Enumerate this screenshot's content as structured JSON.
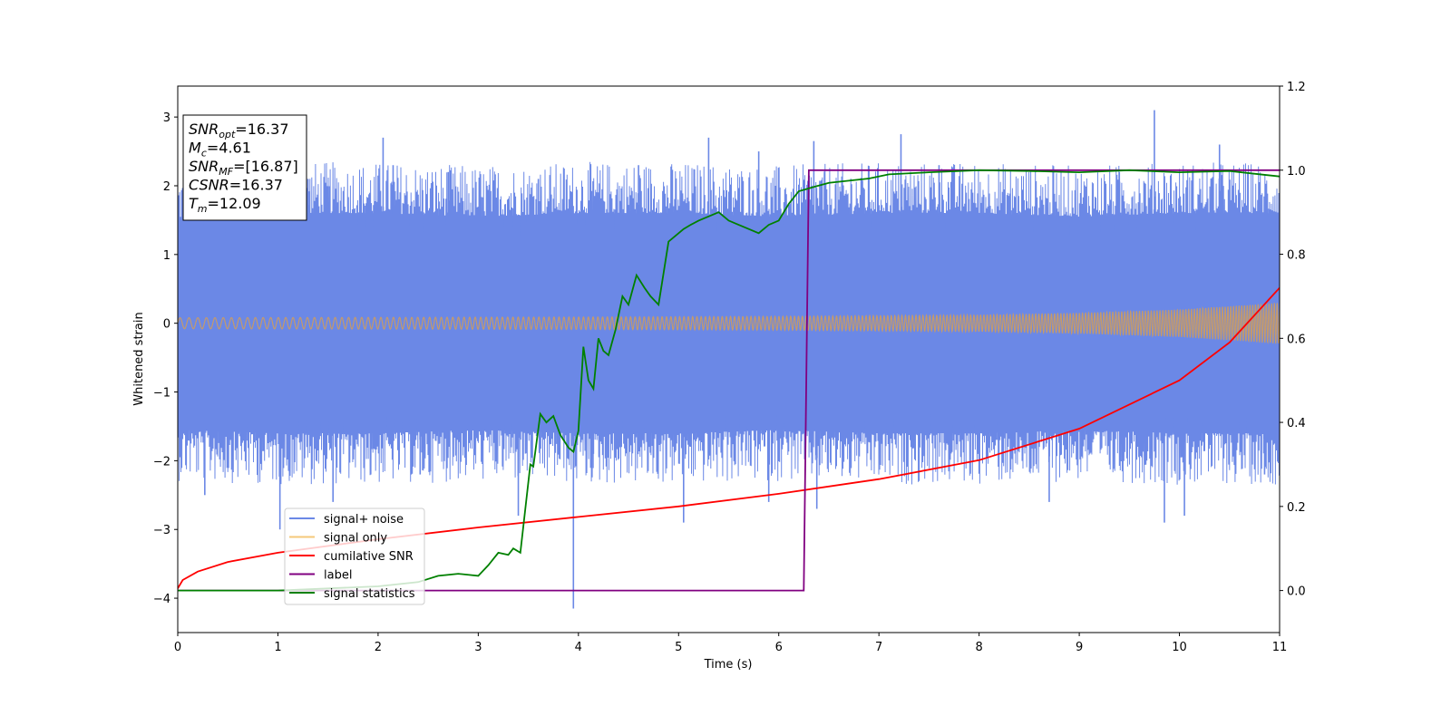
{
  "chart_data": {
    "type": "line",
    "xlabel": "Time (s)",
    "ylabel": "Whitened strain",
    "xlim": [
      0,
      11
    ],
    "ylim": [
      -4.5,
      3.45
    ],
    "y2lim": [
      -0.1,
      1.2
    ],
    "x_ticks": [
      0,
      1,
      2,
      3,
      4,
      5,
      6,
      7,
      8,
      9,
      10,
      11
    ],
    "x_tick_labels": [
      "0",
      "1",
      "2",
      "3",
      "4",
      "5",
      "6",
      "7",
      "8",
      "9",
      "10",
      "11"
    ],
    "y_ticks": [
      -4,
      -3,
      -2,
      -1,
      0,
      1,
      2,
      3
    ],
    "y_tick_labels": [
      "−4",
      "−3",
      "−2",
      "−1",
      "0",
      "1",
      "2",
      "3"
    ],
    "y2_ticks": [
      0.0,
      0.2,
      0.4,
      0.6,
      0.8,
      1.0,
      1.2
    ],
    "y2_tick_labels": [
      "0.0",
      "0.2",
      "0.4",
      "0.6",
      "0.8",
      "1.0",
      "1.2"
    ],
    "legend_position": "lower-left",
    "series": [
      {
        "name": "signal+ noise",
        "axis": "left",
        "color": "#6b88e6",
        "style": "noisy band",
        "envelope_t": [
          0,
          1,
          2,
          3,
          4,
          5,
          6,
          7,
          8,
          9,
          10,
          11
        ],
        "envelope_hi": [
          1.5,
          1.6,
          1.6,
          1.55,
          1.6,
          1.6,
          1.55,
          1.6,
          1.6,
          1.55,
          1.6,
          1.6
        ],
        "envelope_lo": [
          -1.55,
          -1.6,
          -1.6,
          -1.55,
          -1.6,
          -1.6,
          -1.55,
          -1.6,
          -1.6,
          -1.55,
          -1.6,
          -1.6
        ],
        "spikes": [
          {
            "t": 0.1,
            "v": 1.9
          },
          {
            "t": 0.27,
            "v": -2.5
          },
          {
            "t": 0.55,
            "v": 2.0
          },
          {
            "t": 1.02,
            "v": -3.0
          },
          {
            "t": 1.3,
            "v": 2.1
          },
          {
            "t": 1.55,
            "v": -2.6
          },
          {
            "t": 2.05,
            "v": 2.7
          },
          {
            "t": 2.15,
            "v": 2.3
          },
          {
            "t": 2.42,
            "v": -2.2
          },
          {
            "t": 2.7,
            "v": 2.2
          },
          {
            "t": 3.4,
            "v": -2.8
          },
          {
            "t": 3.6,
            "v": 2.1
          },
          {
            "t": 3.95,
            "v": -4.15
          },
          {
            "t": 4.15,
            "v": -1.9
          },
          {
            "t": 4.6,
            "v": 2.3
          },
          {
            "t": 5.05,
            "v": -2.9
          },
          {
            "t": 5.3,
            "v": 2.7
          },
          {
            "t": 5.8,
            "v": 2.5
          },
          {
            "t": 5.9,
            "v": -2.6
          },
          {
            "t": 6.35,
            "v": 2.65
          },
          {
            "t": 6.38,
            "v": -2.7
          },
          {
            "t": 7.22,
            "v": 2.75
          },
          {
            "t": 7.6,
            "v": 2.3
          },
          {
            "t": 8.7,
            "v": -2.6
          },
          {
            "t": 9.4,
            "v": 2.2
          },
          {
            "t": 9.75,
            "v": 3.1
          },
          {
            "t": 9.85,
            "v": -2.9
          },
          {
            "t": 10.05,
            "v": -2.8
          },
          {
            "t": 10.4,
            "v": 2.6
          },
          {
            "t": 10.85,
            "v": -2.2
          }
        ]
      },
      {
        "name": "signal only",
        "axis": "left",
        "color": "#f5c87a",
        "style": "chirp",
        "amplitude_t": [
          0,
          2,
          4,
          6,
          8,
          9,
          10,
          10.5,
          11
        ],
        "amplitude": [
          0.08,
          0.085,
          0.09,
          0.1,
          0.12,
          0.15,
          0.2,
          0.25,
          0.3
        ]
      },
      {
        "name": "cumilative SNR",
        "axis": "right",
        "color": "#ff0000",
        "x": [
          0,
          0.05,
          0.2,
          0.5,
          1,
          2,
          3,
          4,
          5,
          6,
          7,
          8,
          9,
          10,
          10.5,
          11
        ],
        "y": [
          0.005,
          0.025,
          0.045,
          0.068,
          0.09,
          0.122,
          0.15,
          0.175,
          0.2,
          0.23,
          0.265,
          0.31,
          0.385,
          0.5,
          0.59,
          0.72
        ]
      },
      {
        "name": "label",
        "axis": "right",
        "color": "#800080",
        "x": [
          0,
          6.25,
          6.3,
          11
        ],
        "y": [
          0.0,
          0.0,
          1.0,
          1.0
        ]
      },
      {
        "name": "signal statistics",
        "axis": "right",
        "color": "#008000",
        "x": [
          0,
          1,
          2,
          2.4,
          2.6,
          2.8,
          3.0,
          3.1,
          3.2,
          3.3,
          3.35,
          3.42,
          3.52,
          3.55,
          3.62,
          3.68,
          3.75,
          3.82,
          3.9,
          3.95,
          4.0,
          4.05,
          4.1,
          4.15,
          4.2,
          4.25,
          4.3,
          4.37,
          4.44,
          4.5,
          4.58,
          4.66,
          4.72,
          4.8,
          4.9,
          5.0,
          5.05,
          5.12,
          5.2,
          5.3,
          5.4,
          5.5,
          5.6,
          5.7,
          5.8,
          5.9,
          6.0,
          6.1,
          6.2,
          6.35,
          6.5,
          6.7,
          6.9,
          7.1,
          7.5,
          8.0,
          8.5,
          9.0,
          9.5,
          10.0,
          10.5,
          11.0
        ],
        "y": [
          0.0,
          0.0,
          0.01,
          0.02,
          0.035,
          0.04,
          0.035,
          0.06,
          0.09,
          0.085,
          0.1,
          0.09,
          0.3,
          0.295,
          0.42,
          0.4,
          0.415,
          0.37,
          0.34,
          0.33,
          0.38,
          0.58,
          0.5,
          0.48,
          0.6,
          0.57,
          0.56,
          0.62,
          0.7,
          0.68,
          0.75,
          0.72,
          0.7,
          0.68,
          0.83,
          0.85,
          0.86,
          0.87,
          0.88,
          0.89,
          0.9,
          0.88,
          0.87,
          0.86,
          0.85,
          0.87,
          0.88,
          0.92,
          0.95,
          0.96,
          0.97,
          0.975,
          0.98,
          0.99,
          0.995,
          1.0,
          0.998,
          0.995,
          1.0,
          0.995,
          0.998,
          0.985
        ]
      }
    ],
    "annotation": {
      "lines": [
        {
          "base": "SNR",
          "sub": "opt",
          "rest": "=16.37"
        },
        {
          "base": "M",
          "sub": "c",
          "rest": "=4.61"
        },
        {
          "base": "SNR",
          "sub": "MF",
          "rest": "=[16.87]"
        },
        {
          "base": "CSNR",
          "sub": "",
          "rest": "=16.37"
        },
        {
          "base": "T",
          "sub": "m",
          "rest": "=12.09"
        }
      ]
    }
  }
}
